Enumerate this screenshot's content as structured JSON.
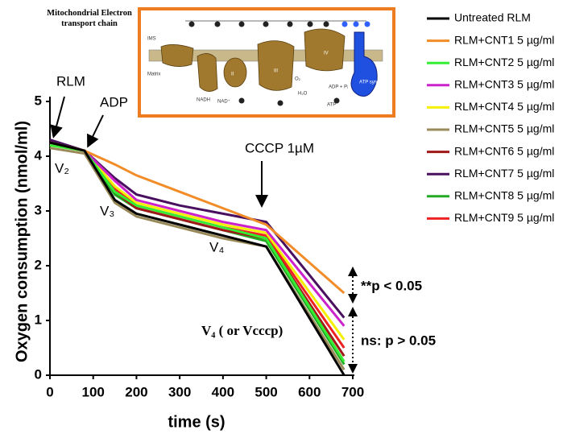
{
  "chart_data": {
    "type": "line",
    "x_label": "time (s)",
    "y_label": "Oxygen consumption (nmol/ml)",
    "x": [
      0,
      80,
      150,
      200,
      300,
      400,
      500,
      680
    ],
    "xlim": [
      0,
      700
    ],
    "xticks": [
      0,
      100,
      200,
      300,
      400,
      500,
      600,
      700
    ],
    "ylim": [
      0,
      5
    ],
    "yticks": [
      0,
      1,
      2,
      3,
      4,
      5
    ],
    "grid": false,
    "legend": "upper right",
    "series": [
      {
        "name": "Untreated RLM",
        "color": "#000000",
        "values": [
          4.25,
          4.1,
          3.2,
          2.95,
          2.75,
          2.55,
          2.35,
          0.0
        ]
      },
      {
        "name": "RLM+CNT1 5 µg/ml",
        "color": "#f28c28",
        "values": [
          4.25,
          4.1,
          3.85,
          3.65,
          3.35,
          3.05,
          2.75,
          1.5
        ]
      },
      {
        "name": "RLM+CNT2 5 µg/ml",
        "color": "#33ee33",
        "values": [
          4.2,
          4.1,
          3.35,
          3.1,
          2.9,
          2.7,
          2.5,
          0.25
        ]
      },
      {
        "name": "RLM+CNT3 5 µg/ml",
        "color": "#cc22cc",
        "values": [
          4.25,
          4.1,
          3.55,
          3.2,
          3.0,
          2.8,
          2.65,
          0.9
        ]
      },
      {
        "name": "RLM+CNT4 5 µg/ml",
        "color": "#f5f000",
        "values": [
          4.2,
          4.1,
          3.45,
          3.15,
          2.95,
          2.75,
          2.6,
          0.65
        ]
      },
      {
        "name": "RLM+CNT5 5 µg/ml",
        "color": "#9a8a5a",
        "values": [
          4.15,
          4.05,
          3.15,
          2.9,
          2.7,
          2.5,
          2.35,
          0.1
        ]
      },
      {
        "name": "RLM+CNT6 5 µg/ml",
        "color": "#a01818",
        "values": [
          4.25,
          4.1,
          3.35,
          3.05,
          2.85,
          2.65,
          2.5,
          0.35
        ]
      },
      {
        "name": "RLM+CNT7 5 µg/ml",
        "color": "#4a1060",
        "values": [
          4.3,
          4.1,
          3.6,
          3.3,
          3.1,
          2.95,
          2.8,
          1.05
        ]
      },
      {
        "name": "RLM+CNT8 5 µg/ml",
        "color": "#22aa22",
        "values": [
          4.2,
          4.1,
          3.3,
          3.05,
          2.85,
          2.65,
          2.45,
          0.2
        ]
      },
      {
        "name": "RLM+CNT9 5 µg/ml",
        "color": "#ee2222",
        "values": [
          4.25,
          4.1,
          3.4,
          3.1,
          2.9,
          2.7,
          2.55,
          0.5
        ]
      }
    ],
    "annotations": [
      "RLM",
      "ADP",
      "V₂",
      "V₃",
      "V₄",
      "CCCP 1µM",
      "V₄ ( or Vcccp)",
      "**p < 0.05",
      "ns: p > 0.05"
    ],
    "inset": {
      "title": "Mitochondrial Electron transport chain",
      "labels": [
        "IMS",
        "Matrix",
        "NADH",
        "NAD⁺",
        "II",
        "III",
        "IV",
        "O₂",
        "H₂O",
        "ADP + Pᵢ",
        "ATP",
        "ATP synthase"
      ]
    }
  }
}
